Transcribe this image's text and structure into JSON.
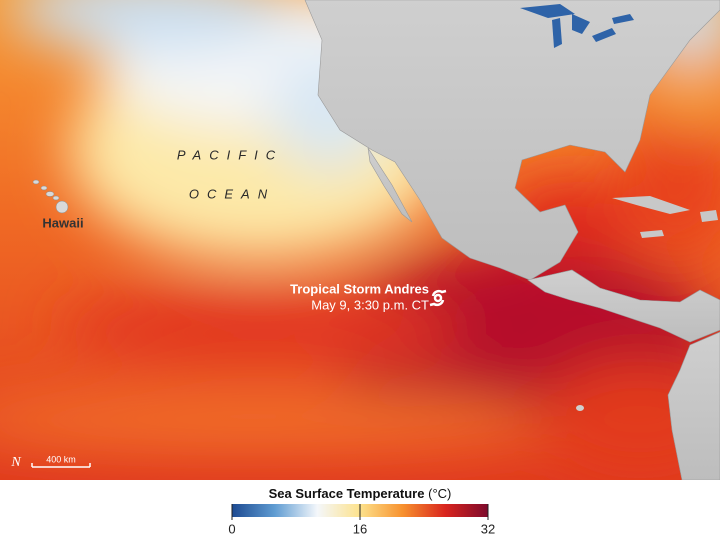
{
  "labels": {
    "ocean_line1": "PACIFIC",
    "ocean_line2": "OCEAN",
    "hawaii": "Hawaii",
    "storm_name": "Tropical Storm Andres",
    "storm_time": "May 9, 3:30 p.m. CT"
  },
  "compass": "N",
  "scale_bar": "400 km",
  "legend": {
    "title": "Sea Surface Temperature",
    "unit": "(°C)",
    "range": [
      0,
      32
    ],
    "ticks": [
      0,
      16,
      32
    ],
    "colors": [
      "#1d4a91",
      "#5f9cd2",
      "#f4f7fb",
      "#fde28c",
      "#f7912e",
      "#d9251e",
      "#7d0a2c"
    ]
  }
}
